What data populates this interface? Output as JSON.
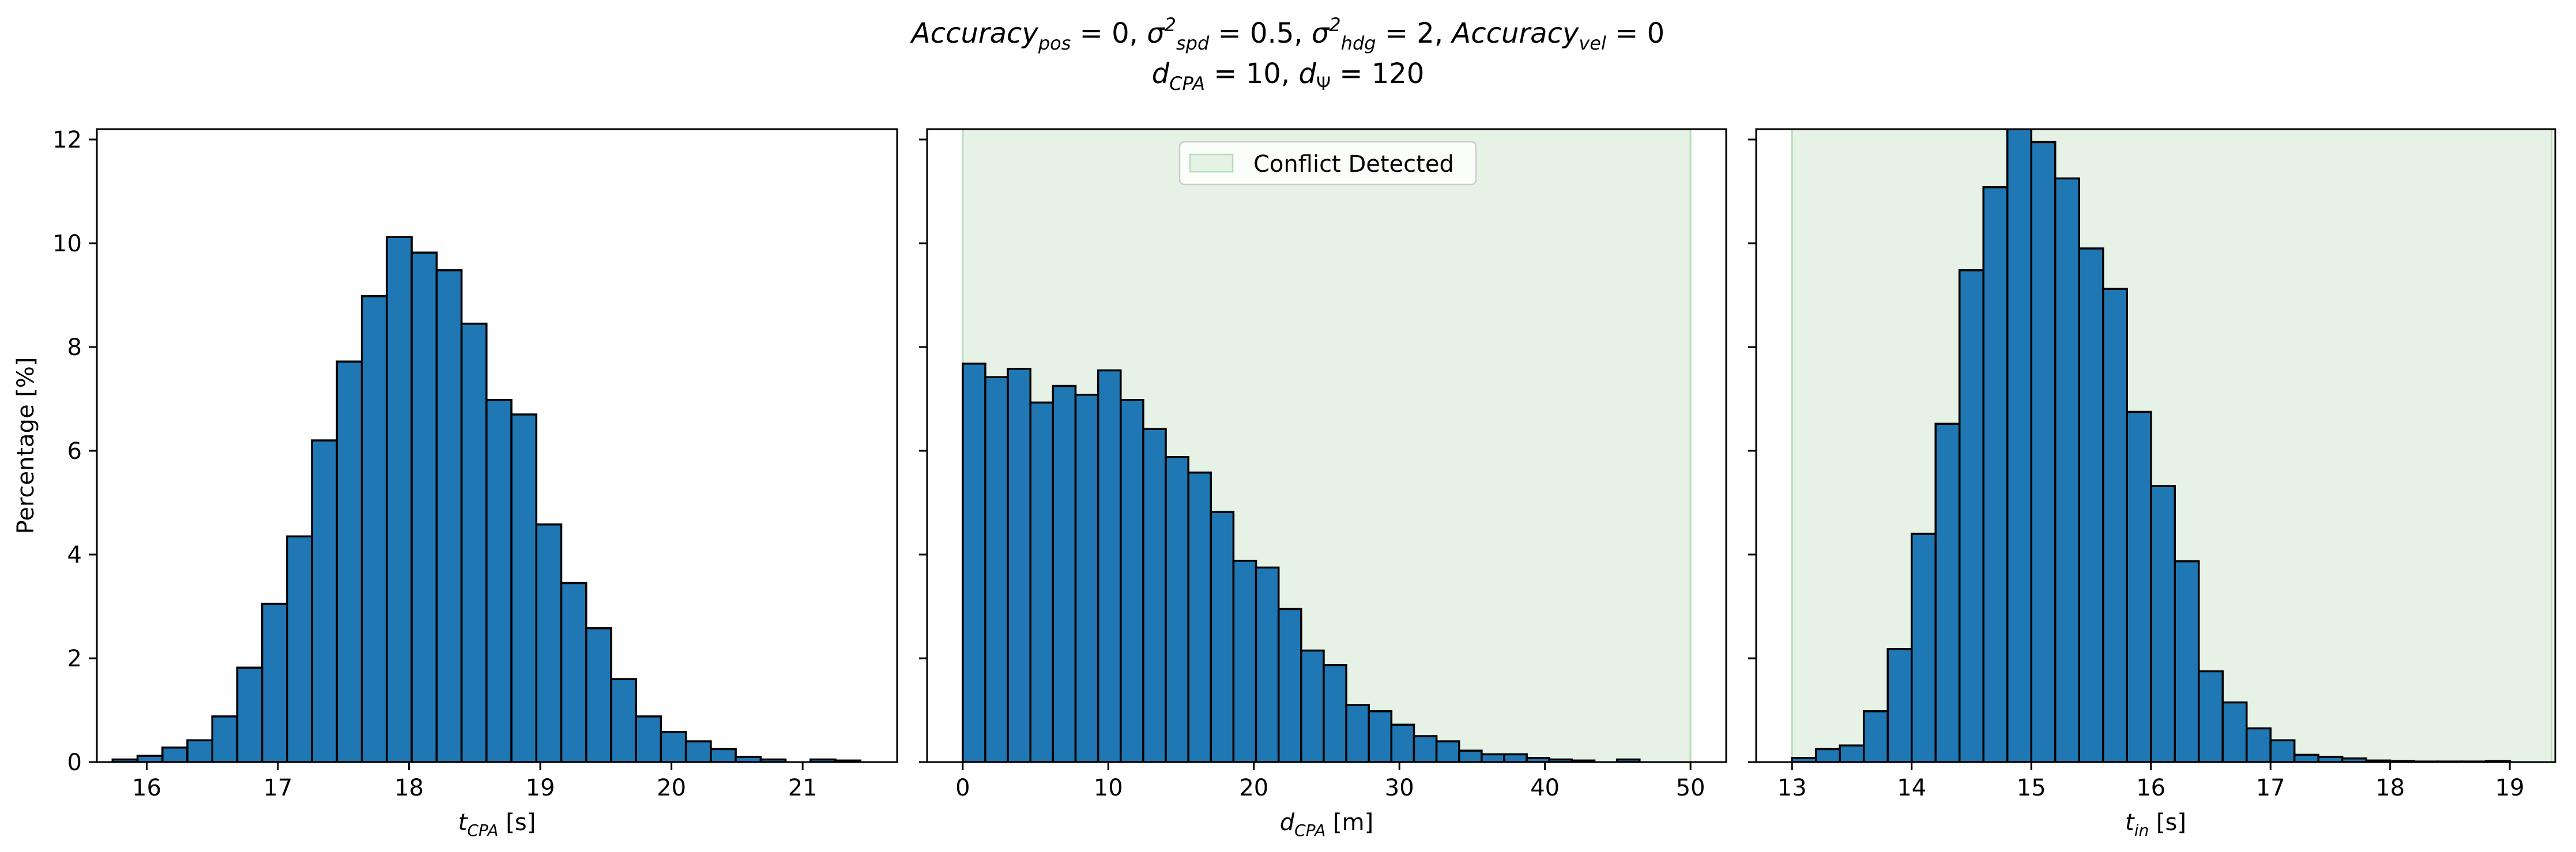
{
  "figure": {
    "title_line1": "Accuracyₚₒₛ = 0, σ²spd = 0.5, σ²hdg = 2, Accuracyᵥₑₗ = 0",
    "title_line2": "dCPA = 10, dΨ = 120"
  },
  "colors": {
    "bar_fill": "#1f77b4",
    "bar_edge": "#000000",
    "conflict_fill": "#e5f2e5",
    "conflict_edge": "#b7dcb7"
  },
  "chart_data": [
    {
      "type": "bar",
      "subtype": "histogram",
      "xlabel": "tCPA [s]",
      "ylabel": "Percentage [%]",
      "xlim": [
        15.62,
        21.72
      ],
      "ylim": [
        0,
        12.2
      ],
      "xticks": [
        16,
        17,
        18,
        19,
        20,
        21
      ],
      "yticks": [
        0,
        2,
        4,
        6,
        8,
        10,
        12
      ],
      "bin_edges": [
        15.74,
        15.93,
        16.12,
        16.31,
        16.5,
        16.69,
        16.88,
        17.07,
        17.26,
        17.45,
        17.64,
        17.83,
        18.02,
        18.21,
        18.4,
        18.59,
        18.78,
        18.97,
        19.16,
        19.35,
        19.54,
        19.73,
        19.92,
        20.11,
        20.3,
        20.49,
        20.68,
        20.87,
        21.06,
        21.25,
        21.44
      ],
      "values": [
        0.05,
        0.12,
        0.28,
        0.42,
        0.88,
        1.82,
        3.05,
        4.35,
        6.2,
        7.72,
        8.98,
        10.12,
        9.82,
        9.48,
        8.45,
        6.98,
        6.7,
        4.58,
        3.45,
        2.58,
        1.6,
        0.88,
        0.58,
        0.4,
        0.25,
        0.1,
        0.05,
        0.0,
        0.05,
        0.03
      ]
    },
    {
      "type": "bar",
      "subtype": "histogram",
      "xlabel": "dCPA [m]",
      "xlim": [
        -2.45,
        52.45
      ],
      "ylim": [
        0,
        12.2
      ],
      "xticks": [
        0,
        10,
        20,
        30,
        40,
        50
      ],
      "yticks": [
        0,
        2,
        4,
        6,
        8,
        10,
        12
      ],
      "shaded_region": {
        "x0": 0,
        "x1": 50,
        "label": "Conflict Detected"
      },
      "legend_position": "upper center",
      "bin_edges": [
        0.0,
        1.55,
        3.1,
        4.65,
        6.2,
        7.75,
        9.3,
        10.85,
        12.4,
        13.95,
        15.5,
        17.05,
        18.6,
        20.15,
        21.7,
        23.25,
        24.8,
        26.35,
        27.9,
        29.45,
        31.0,
        32.55,
        34.1,
        35.65,
        37.2,
        38.75,
        40.3,
        41.85,
        43.4,
        44.95,
        46.5
      ],
      "values": [
        7.68,
        7.42,
        7.58,
        6.93,
        7.25,
        7.08,
        7.55,
        6.98,
        6.42,
        5.88,
        5.58,
        4.82,
        3.88,
        3.75,
        2.95,
        2.15,
        1.87,
        1.1,
        0.98,
        0.72,
        0.5,
        0.4,
        0.22,
        0.15,
        0.15,
        0.08,
        0.05,
        0.03,
        0.0,
        0.05
      ]
    },
    {
      "type": "bar",
      "subtype": "histogram",
      "xlabel": "tin [s]",
      "xlim": [
        12.7,
        19.38
      ],
      "ylim": [
        0,
        12.2
      ],
      "xticks": [
        13,
        14,
        15,
        16,
        17,
        18,
        19
      ],
      "yticks": [
        0,
        2,
        4,
        6,
        8,
        10,
        12
      ],
      "shaded_region": {
        "x0": 13.0,
        "x1": 19.35,
        "label": "Conflict Detected"
      },
      "bin_edges": [
        13.0,
        13.2,
        13.4,
        13.6,
        13.8,
        14.0,
        14.2,
        14.4,
        14.6,
        14.8,
        15.0,
        15.2,
        15.4,
        15.6,
        15.8,
        16.0,
        16.2,
        16.4,
        16.6,
        16.8,
        17.0,
        17.2,
        17.4,
        17.6,
        17.8,
        18.0,
        18.2,
        18.4,
        18.6,
        18.8,
        19.0
      ],
      "values": [
        0.08,
        0.25,
        0.32,
        0.98,
        2.18,
        4.4,
        6.52,
        9.48,
        11.08,
        12.25,
        11.95,
        11.25,
        9.9,
        9.12,
        6.75,
        5.32,
        3.87,
        1.75,
        1.15,
        0.65,
        0.42,
        0.14,
        0.1,
        0.07,
        0.03,
        0.02,
        0.01,
        0.01,
        0.01,
        0.02
      ]
    }
  ]
}
